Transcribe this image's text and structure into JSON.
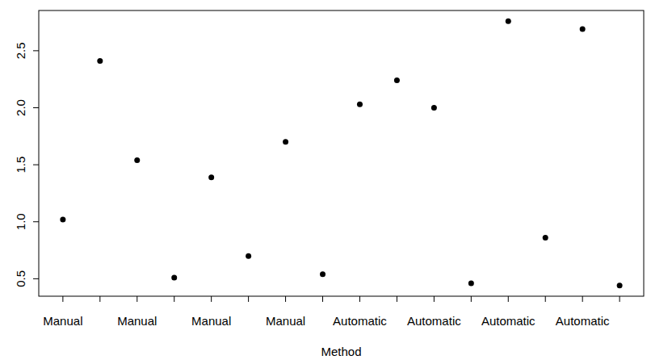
{
  "chart_data": {
    "type": "scatter",
    "x_label": "Method",
    "categories": [
      "Manual",
      null,
      "Manual",
      null,
      "Manual",
      null,
      "Manual",
      null,
      "Automatic",
      null,
      "Automatic",
      null,
      "Automatic",
      null,
      "Automatic",
      null
    ],
    "values": [
      1.02,
      2.41,
      1.54,
      0.51,
      1.39,
      0.7,
      1.7,
      0.54,
      2.03,
      2.24,
      2.0,
      0.46,
      2.76,
      0.86,
      2.69,
      0.44
    ],
    "color": "#000000",
    "marker": "circle",
    "ylim": [
      0.347,
      2.853
    ],
    "yticks": [
      0.5,
      {
        "value": 1,
        "label": "1.0"
      },
      1.5,
      {
        "value": 2,
        "label": "2.0"
      },
      2.5
    ],
    "grid": false
  }
}
